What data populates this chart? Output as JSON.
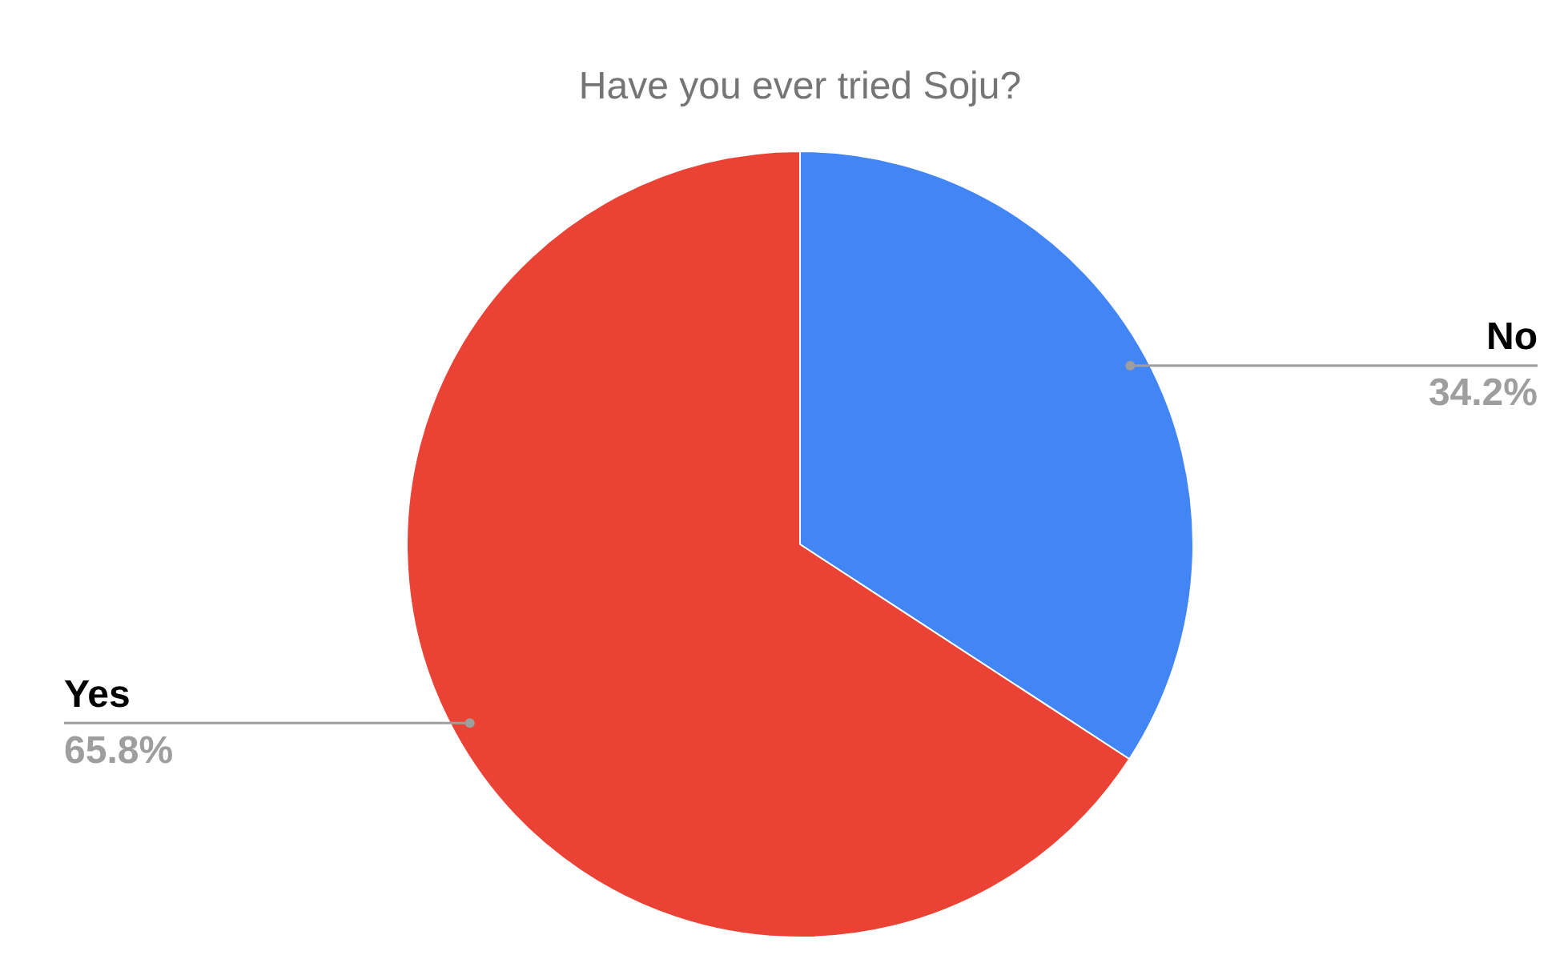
{
  "chart_data": {
    "type": "pie",
    "title": "Have you ever tried Soju?",
    "categories": [
      "No",
      "Yes"
    ],
    "values": [
      34.2,
      65.8
    ],
    "colors": [
      "#4285f4",
      "#ea4335"
    ],
    "value_labels": [
      "34.2%",
      "65.8%"
    ],
    "legend": false
  }
}
